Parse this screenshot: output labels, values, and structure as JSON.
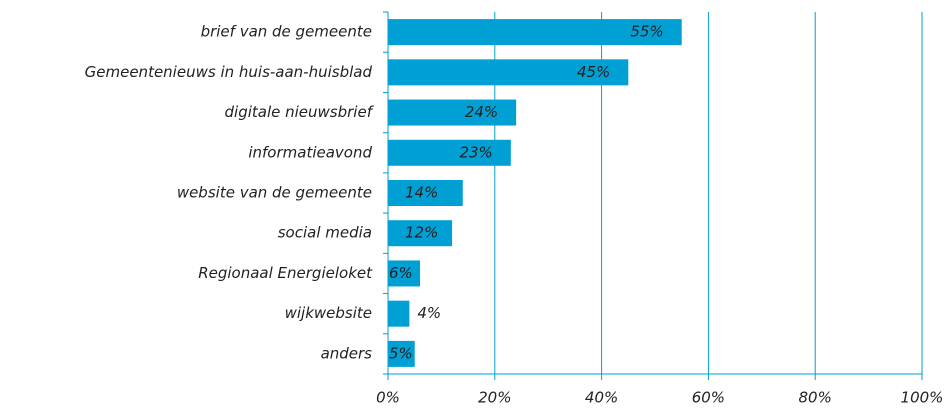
{
  "chart_data": {
    "type": "bar",
    "orientation": "horizontal",
    "categories": [
      "brief van de gemeente",
      "Gemeentenieuws in huis-aan-huisblad",
      "digitale nieuwsbrief",
      "informatieavond",
      "website van de gemeente",
      "social media",
      "Regionaal Energieloket",
      "wijkwebsite",
      "anders"
    ],
    "values": [
      55,
      45,
      24,
      23,
      14,
      12,
      6,
      4,
      5
    ],
    "value_labels": [
      "55%",
      "45%",
      "24%",
      "23%",
      "14%",
      "12%",
      "6%",
      "4%",
      "5%"
    ],
    "color": "#009fd4",
    "xlim": [
      0,
      100
    ],
    "xticks": [
      {
        "value": 0,
        "label": "0%"
      },
      {
        "value": 20,
        "label": "20%"
      },
      {
        "value": 40,
        "label": "40%"
      },
      {
        "value": 60,
        "label": "60%"
      },
      {
        "value": 80,
        "label": "80%"
      },
      {
        "value": 100,
        "label": "100%"
      }
    ],
    "grid": true
  }
}
